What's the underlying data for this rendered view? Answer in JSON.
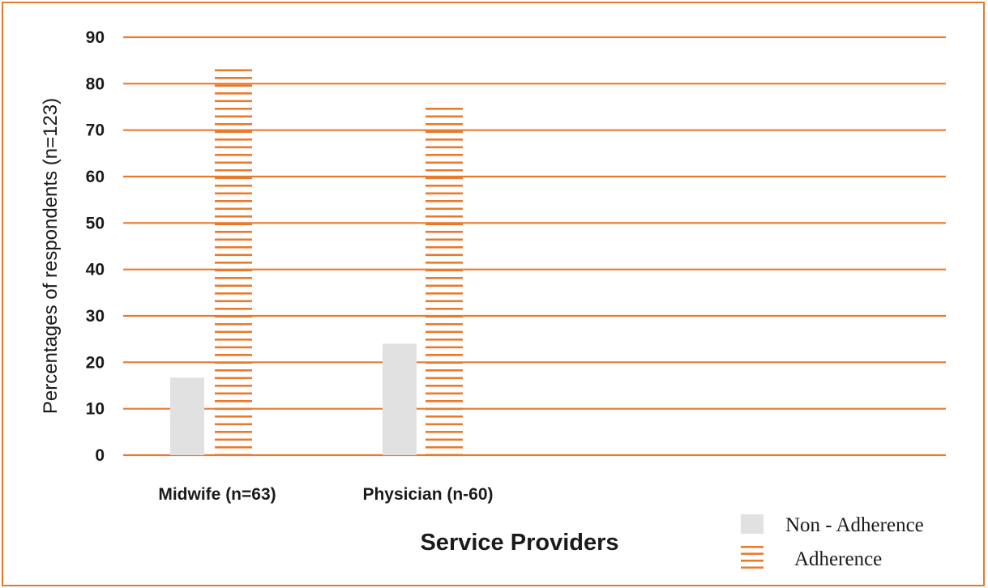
{
  "chart_data": {
    "type": "bar",
    "xlabel": "Service Providers",
    "ylabel": "Percentages of respondents (n=123)",
    "ylim": [
      0,
      90
    ],
    "yticks": [
      0,
      10,
      20,
      30,
      40,
      50,
      60,
      70,
      80,
      90
    ],
    "grid": true,
    "legend_position": "bottom-right",
    "categories": [
      "Midwife (n=63)",
      "Physician (n-60)"
    ],
    "series": [
      {
        "name": "Non - Adherence",
        "values": [
          16.7,
          24.0
        ],
        "color": "#e1e1e1"
      },
      {
        "name": "Adherence",
        "values": [
          83.3,
          76.0
        ],
        "color": "#e87a2e"
      }
    ]
  }
}
